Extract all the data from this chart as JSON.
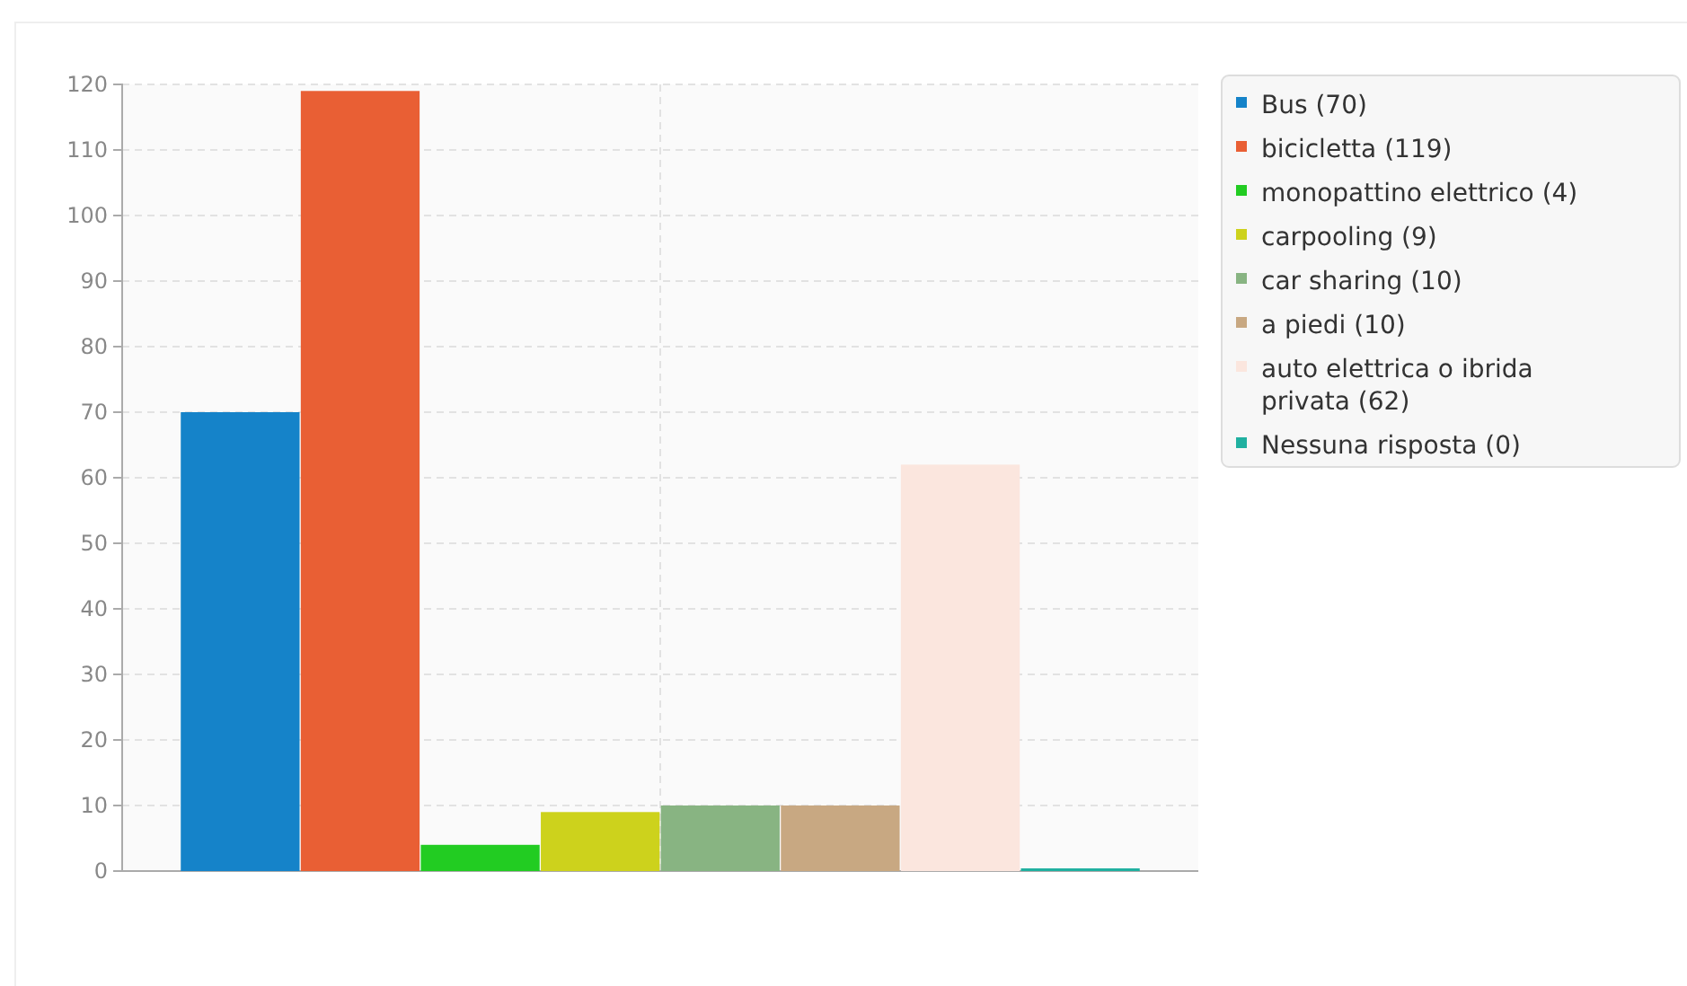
{
  "chart_data": {
    "type": "bar",
    "categories": [
      null
    ],
    "series": [
      {
        "name": "Bus (70)",
        "color": "#1583c9",
        "values": [
          70
        ]
      },
      {
        "name": "bicicletta (119)",
        "color": "#e95f34",
        "values": [
          119
        ]
      },
      {
        "name": "monopattino elettrico (4)",
        "color": "#22cc22",
        "values": [
          4
        ]
      },
      {
        "name": "carpooling (9)",
        "color": "#cdd21c",
        "values": [
          9
        ]
      },
      {
        "name": "car sharing (10)",
        "color": "#88b482",
        "values": [
          10
        ]
      },
      {
        "name": "a piedi (10)",
        "color": "#c8a882",
        "values": [
          10
        ]
      },
      {
        "name": "auto elettrica o ibrida privata (62)",
        "color": "#fbe6de",
        "values": [
          62
        ]
      },
      {
        "name": "Nessuna risposta (0)",
        "color": "#20b0a0",
        "values": [
          0
        ]
      }
    ],
    "ylim": [
      0,
      120
    ],
    "yticks": [
      0,
      10,
      20,
      30,
      40,
      50,
      60,
      70,
      80,
      90,
      100,
      110,
      120
    ],
    "grid": true,
    "legend": "right"
  }
}
